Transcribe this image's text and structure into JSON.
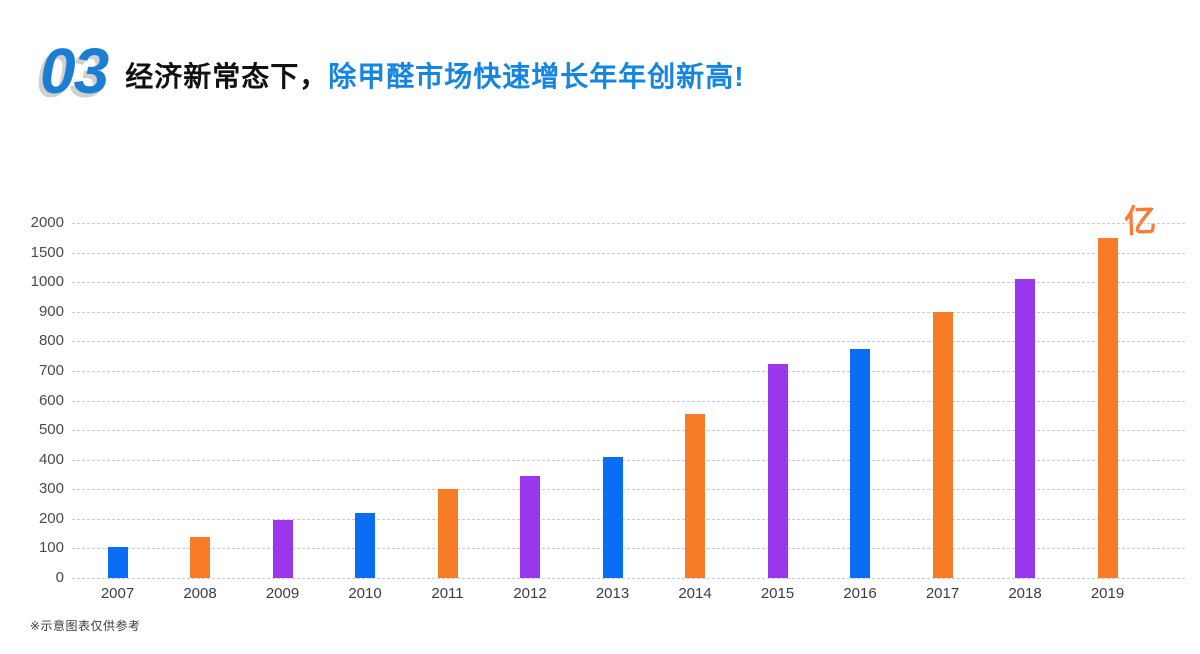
{
  "header": {
    "section_number": "03",
    "title": {
      "black_part": "经济新常态下，",
      "blue_part": "除甲醛市场快速增长年年创新高!"
    }
  },
  "chart_data": {
    "type": "bar",
    "title": "",
    "xlabel": "",
    "ylabel": "",
    "unit_label": "亿",
    "categories": [
      "2007",
      "2008",
      "2009",
      "2010",
      "2011",
      "2012",
      "2013",
      "2014",
      "2015",
      "2016",
      "2017",
      "2018",
      "2019"
    ],
    "values": [
      105,
      140,
      195,
      220,
      300,
      345,
      410,
      555,
      725,
      775,
      900,
      1050,
      1740
    ],
    "bar_colors": [
      "#0B6CF4",
      "#F87B28",
      "#9B36EF",
      "#0B6CF4",
      "#F87B28",
      "#9B36EF",
      "#0B6CF4",
      "#F87B28",
      "#9B36EF",
      "#0B6CF4",
      "#F87B28",
      "#9B36EF",
      "#F87B28"
    ],
    "y_ticks": [
      0,
      100,
      200,
      300,
      400,
      500,
      600,
      700,
      800,
      900,
      1000,
      1500,
      2000
    ],
    "ylim": [
      0,
      2000
    ],
    "axis_note": "non-linear y-axis: equal spacing per tick (100-steps up to 1000, then 500-steps to 2000)",
    "grid": "horizontal dashed",
    "legend": "none"
  },
  "footnote": "※示意图表仅供参考",
  "colors": {
    "bar_blue": "#0B6CF4",
    "bar_orange": "#F87B28",
    "bar_purple": "#9B36EF",
    "title_blue": "#1585E2",
    "section_number_blue": "#1B7ED3",
    "unit_orange": "#F87B3A",
    "gridline": "#CCCCCC",
    "axis_text": "#444444",
    "background": "#FFFFFF"
  }
}
